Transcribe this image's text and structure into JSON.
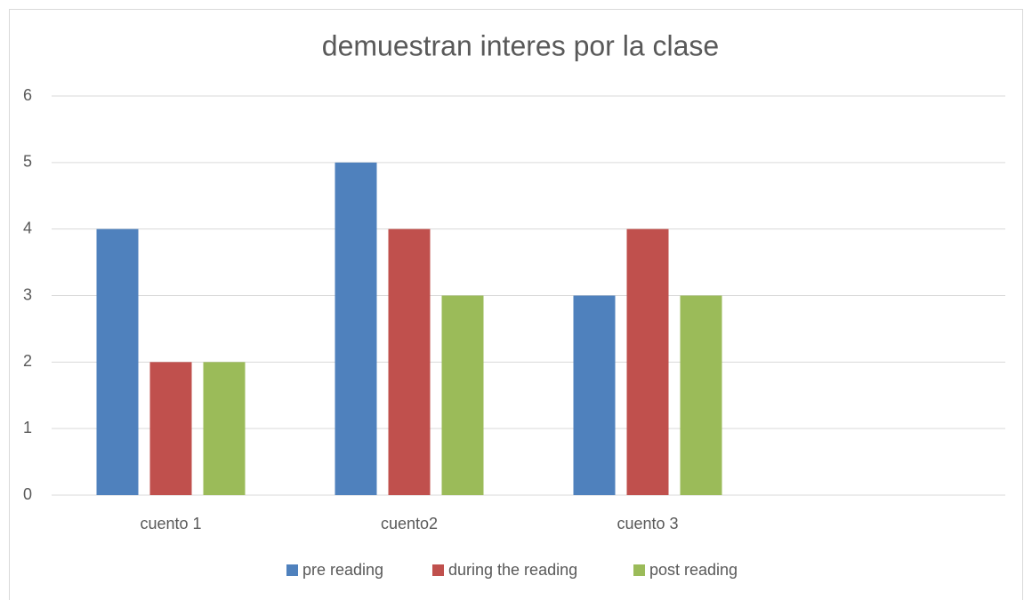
{
  "chart_data": {
    "type": "bar",
    "title": "demuestran interes por la clase",
    "categories": [
      "cuento 1",
      "cuento2",
      "cuento 3",
      null
    ],
    "series": [
      {
        "name": "pre reading",
        "color": "#4f81bd",
        "values": [
          4,
          5,
          3,
          null
        ]
      },
      {
        "name": "during the reading",
        "color": "#c0504d",
        "values": [
          2,
          4,
          4,
          null
        ]
      },
      {
        "name": "post reading",
        "color": "#9bbb59",
        "values": [
          2,
          3,
          3,
          null
        ]
      }
    ],
    "ylim": [
      0,
      6
    ],
    "yticks": [
      0,
      1,
      2,
      3,
      4,
      5,
      6
    ],
    "grid": true,
    "legend": "bottom"
  }
}
